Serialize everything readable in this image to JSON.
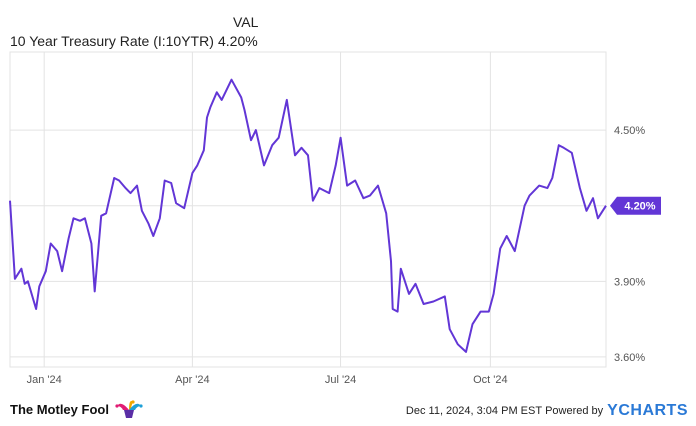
{
  "legend": {
    "header": "VAL",
    "series_label": "10 Year Treasury Rate (I:10YTR)",
    "series_value": "4.20%"
  },
  "colors": {
    "line": "#6236d6",
    "grid": "#e3e3e3",
    "axis_text": "#555555",
    "badge_bg": "#6236d6",
    "badge_text": "#ffffff"
  },
  "footer": {
    "brand": "The Motley Fool",
    "timestamp": "Dec 11, 2024, 3:04 PM EST",
    "powered": "Powered by",
    "logo_text": "YCHARTS"
  },
  "chart_data": {
    "type": "line",
    "title": "",
    "xlabel": "",
    "ylabel": "",
    "x_ticks": [
      "Jan '24",
      "Apr '24",
      "Jul '24",
      "Oct '24"
    ],
    "y_ticks": [
      "4.50%",
      "4.20%",
      "3.90%",
      "3.60%"
    ],
    "ylim": [
      3.56,
      4.81
    ],
    "grid": true,
    "current_value_label": "4.20%",
    "series": [
      {
        "name": "10 Year Treasury Rate (I:10YTR)",
        "x": [
          "2023-12-11",
          "2023-12-14",
          "2023-12-18",
          "2023-12-20",
          "2023-12-22",
          "2023-12-27",
          "2023-12-29",
          "2024-01-02",
          "2024-01-05",
          "2024-01-09",
          "2024-01-12",
          "2024-01-16",
          "2024-01-19",
          "2024-01-23",
          "2024-01-26",
          "2024-01-30",
          "2024-02-01",
          "2024-02-05",
          "2024-02-08",
          "2024-02-13",
          "2024-02-16",
          "2024-02-20",
          "2024-02-23",
          "2024-02-27",
          "2024-03-01",
          "2024-03-05",
          "2024-03-08",
          "2024-03-12",
          "2024-03-15",
          "2024-03-19",
          "2024-03-22",
          "2024-03-27",
          "2024-04-01",
          "2024-04-04",
          "2024-04-08",
          "2024-04-10",
          "2024-04-12",
          "2024-04-16",
          "2024-04-19",
          "2024-04-25",
          "2024-05-01",
          "2024-05-03",
          "2024-05-07",
          "2024-05-10",
          "2024-05-15",
          "2024-05-20",
          "2024-05-24",
          "2024-05-29",
          "2024-06-03",
          "2024-06-07",
          "2024-06-11",
          "2024-06-14",
          "2024-06-18",
          "2024-06-24",
          "2024-06-28",
          "2024-07-01",
          "2024-07-05",
          "2024-07-10",
          "2024-07-15",
          "2024-07-19",
          "2024-07-24",
          "2024-07-29",
          "2024-08-01",
          "2024-08-02",
          "2024-08-05",
          "2024-08-07",
          "2024-08-12",
          "2024-08-16",
          "2024-08-21",
          "2024-08-27",
          "2024-09-03",
          "2024-09-06",
          "2024-09-11",
          "2024-09-16",
          "2024-09-20",
          "2024-09-25",
          "2024-09-30",
          "2024-10-03",
          "2024-10-07",
          "2024-10-11",
          "2024-10-16",
          "2024-10-22",
          "2024-10-25",
          "2024-10-31",
          "2024-11-05",
          "2024-11-08",
          "2024-11-12",
          "2024-11-15",
          "2024-11-20",
          "2024-11-25",
          "2024-11-29",
          "2024-12-03",
          "2024-12-06",
          "2024-12-11"
        ],
        "values": [
          4.22,
          3.91,
          3.95,
          3.89,
          3.9,
          3.79,
          3.88,
          3.94,
          4.05,
          4.02,
          3.94,
          4.07,
          4.15,
          4.14,
          4.15,
          4.05,
          3.86,
          4.16,
          4.17,
          4.31,
          4.3,
          4.27,
          4.25,
          4.28,
          4.18,
          4.13,
          4.08,
          4.15,
          4.3,
          4.29,
          4.21,
          4.19,
          4.33,
          4.36,
          4.42,
          4.55,
          4.59,
          4.65,
          4.62,
          4.7,
          4.63,
          4.58,
          4.46,
          4.5,
          4.36,
          4.44,
          4.47,
          4.62,
          4.4,
          4.43,
          4.4,
          4.22,
          4.27,
          4.25,
          4.36,
          4.47,
          4.28,
          4.3,
          4.23,
          4.24,
          4.28,
          4.17,
          3.98,
          3.79,
          3.78,
          3.95,
          3.85,
          3.89,
          3.81,
          3.82,
          3.84,
          3.71,
          3.65,
          3.62,
          3.73,
          3.78,
          3.78,
          3.85,
          4.03,
          4.08,
          4.02,
          4.2,
          4.24,
          4.28,
          4.27,
          4.31,
          4.44,
          4.43,
          4.41,
          4.27,
          4.18,
          4.23,
          4.15,
          4.2
        ]
      }
    ]
  }
}
